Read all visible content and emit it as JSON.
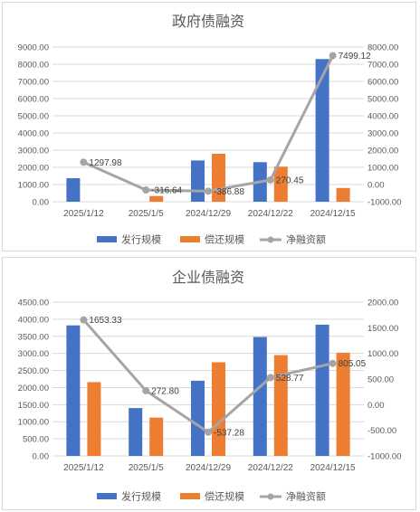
{
  "colors": {
    "issue": "#4472C4",
    "repay": "#ED7D31",
    "net": "#A5A5A5",
    "grid": "#D9D9D9",
    "text": "#595959"
  },
  "chart_data": [
    {
      "type": "bar",
      "title": "政府债融资",
      "categories": [
        "2025/1/12",
        "2025/1/5",
        "2024/12/29",
        "2024/12/22",
        "2024/12/15"
      ],
      "series": [
        {
          "name": "发行规模",
          "type": "bar",
          "axis": "left",
          "values": [
            1370,
            0,
            2400,
            2300,
            8300
          ]
        },
        {
          "name": "偿还规模",
          "type": "bar",
          "axis": "left",
          "values": [
            0,
            330,
            2790,
            2040,
            800
          ]
        },
        {
          "name": "净融资额",
          "type": "line",
          "axis": "right",
          "values": [
            1297.98,
            -316.64,
            -386.88,
            270.45,
            7499.12
          ],
          "labels": [
            "1297.98",
            "-316.64",
            "-386.88",
            "270.45",
            "7499.12"
          ]
        }
      ],
      "left_axis": {
        "min": 0,
        "max": 9000,
        "step": 1000,
        "ticks": [
          "0.00",
          "1000.00",
          "2000.00",
          "3000.00",
          "4000.00",
          "5000.00",
          "6000.00",
          "7000.00",
          "8000.00",
          "9000.00"
        ]
      },
      "right_axis": {
        "min": -1000,
        "max": 8000,
        "step": 1000,
        "ticks": [
          "-1000.00",
          "0.00",
          "1000.00",
          "2000.00",
          "3000.00",
          "4000.00",
          "5000.00",
          "6000.00",
          "7000.00",
          "8000.00"
        ]
      },
      "grid": true,
      "legend_position": "bottom"
    },
    {
      "type": "bar",
      "title": "企业债融资",
      "categories": [
        "2025/1/12",
        "2025/1/5",
        "2024/12/29",
        "2024/12/22",
        "2024/12/15"
      ],
      "series": [
        {
          "name": "发行规模",
          "type": "bar",
          "axis": "left",
          "values": [
            3820,
            1400,
            2200,
            3480,
            3840
          ]
        },
        {
          "name": "偿还规模",
          "type": "bar",
          "axis": "left",
          "values": [
            2160,
            1120,
            2740,
            2950,
            3020
          ]
        },
        {
          "name": "净融资额",
          "type": "line",
          "axis": "right",
          "values": [
            1653.33,
            272.8,
            -537.28,
            528.77,
            805.05
          ],
          "labels": [
            "1653.33",
            "272.80",
            "-537.28",
            "528.77",
            "805.05"
          ]
        }
      ],
      "left_axis": {
        "min": 0,
        "max": 4500,
        "step": 500,
        "ticks": [
          "0.00",
          "500.00",
          "1000.00",
          "1500.00",
          "2000.00",
          "2500.00",
          "3000.00",
          "3500.00",
          "4000.00",
          "4500.00"
        ]
      },
      "right_axis": {
        "min": -1000,
        "max": 2000,
        "step": 500,
        "ticks": [
          "-1000.00",
          "-500.00",
          "0.00",
          "500.00",
          "1000.00",
          "1500.00",
          "2000.00"
        ]
      },
      "grid": true,
      "legend_position": "bottom"
    }
  ]
}
